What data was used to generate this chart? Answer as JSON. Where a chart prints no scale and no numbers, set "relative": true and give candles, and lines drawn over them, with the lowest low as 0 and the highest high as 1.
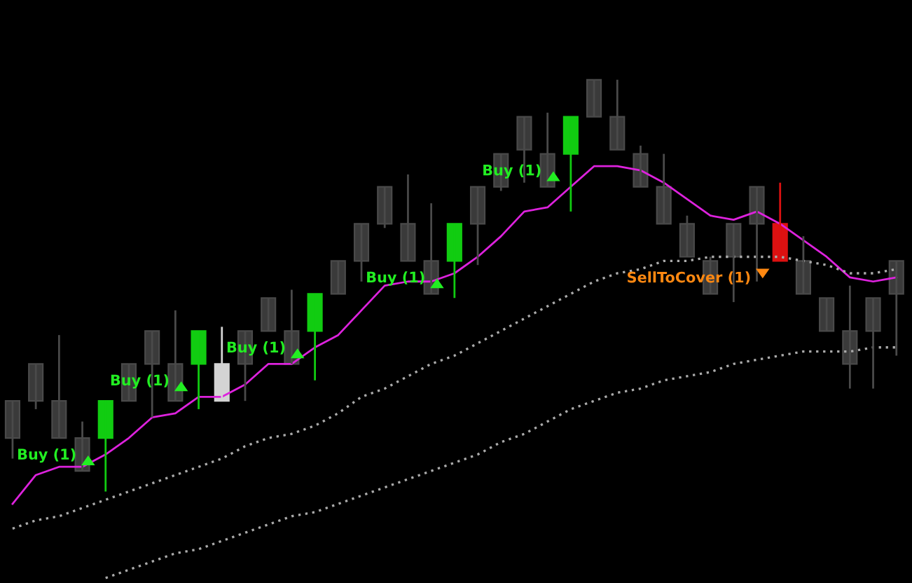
{
  "chart_data": {
    "type": "candlestick",
    "relative": true,
    "categories": [
      null,
      null,
      null,
      null,
      null,
      null,
      null,
      null,
      null,
      null,
      null,
      null,
      null,
      null,
      null,
      null,
      null,
      null,
      null,
      null,
      null,
      null,
      null,
      null,
      null,
      null,
      null,
      null,
      null,
      null,
      null,
      null,
      null,
      null,
      null,
      null,
      null,
      null,
      null
    ],
    "ohlc": [
      [
        0.22,
        0.22,
        0.08,
        0.13
      ],
      [
        0.31,
        0.31,
        0.2,
        0.22
      ],
      [
        0.22,
        0.38,
        0.13,
        0.13
      ],
      [
        0.13,
        0.17,
        0.05,
        0.05
      ],
      [
        0.13,
        0.22,
        0.0,
        0.22
      ],
      [
        0.31,
        0.31,
        0.22,
        0.22
      ],
      [
        0.39,
        0.39,
        0.18,
        0.31
      ],
      [
        0.31,
        0.44,
        0.22,
        0.22
      ],
      [
        0.31,
        0.39,
        0.2,
        0.39
      ],
      [
        0.31,
        0.4,
        0.22,
        0.22
      ],
      [
        0.39,
        0.39,
        0.22,
        0.31
      ],
      [
        0.47,
        0.47,
        0.39,
        0.39
      ],
      [
        0.39,
        0.49,
        0.31,
        0.31
      ],
      [
        0.39,
        0.48,
        0.27,
        0.48
      ],
      [
        0.56,
        0.56,
        0.48,
        0.48
      ],
      [
        0.65,
        0.65,
        0.51,
        0.56
      ],
      [
        0.74,
        0.74,
        0.64,
        0.65
      ],
      [
        0.65,
        0.77,
        0.56,
        0.56
      ],
      [
        0.56,
        0.7,
        0.48,
        0.48
      ],
      [
        0.56,
        0.65,
        0.47,
        0.65
      ],
      [
        0.74,
        0.74,
        0.55,
        0.65
      ],
      [
        0.82,
        0.82,
        0.73,
        0.74
      ],
      [
        0.91,
        0.91,
        0.75,
        0.83
      ],
      [
        0.82,
        0.92,
        0.74,
        0.74
      ],
      [
        0.82,
        0.91,
        0.68,
        0.91
      ],
      [
        1.0,
        1.0,
        0.91,
        0.91
      ],
      [
        0.91,
        1.0,
        0.83,
        0.83
      ],
      [
        0.82,
        0.84,
        0.74,
        0.74
      ],
      [
        0.74,
        0.82,
        0.65,
        0.65
      ],
      [
        0.65,
        0.67,
        0.57,
        0.57
      ],
      [
        0.56,
        0.57,
        0.48,
        0.48
      ],
      [
        0.65,
        0.65,
        0.46,
        0.57
      ],
      [
        0.74,
        0.74,
        0.51,
        0.65
      ],
      [
        0.65,
        0.75,
        0.56,
        0.56
      ],
      [
        0.56,
        0.62,
        0.48,
        0.48
      ],
      [
        0.47,
        0.47,
        0.39,
        0.39
      ],
      [
        0.39,
        0.5,
        0.25,
        0.31
      ],
      [
        0.47,
        0.47,
        0.25,
        0.39
      ],
      [
        0.56,
        0.56,
        0.33,
        0.48
      ]
    ],
    "colors": [
      "#3a3a3a",
      "#3a3a3a",
      "#3a3a3a",
      "#3a3a3a",
      "#11cc11",
      "#3a3a3a",
      "#3a3a3a",
      "#3a3a3a",
      "#11cc11",
      "#d4d4d4",
      "#3a3a3a",
      "#3a3a3a",
      "#3a3a3a",
      "#11cc11",
      "#3a3a3a",
      "#3a3a3a",
      "#3a3a3a",
      "#3a3a3a",
      "#3a3a3a",
      "#11cc11",
      "#3a3a3a",
      "#3a3a3a",
      "#3a3a3a",
      "#3a3a3a",
      "#11cc11",
      "#3a3a3a",
      "#3a3a3a",
      "#3a3a3a",
      "#3a3a3a",
      "#3a3a3a",
      "#3a3a3a",
      "#3a3a3a",
      "#3a3a3a",
      "#dd1111",
      "#3a3a3a",
      "#3a3a3a",
      "#3a3a3a",
      "#3a3a3a",
      "#3a3a3a"
    ],
    "series": [
      {
        "type": "line",
        "color": "#dd22dd",
        "line_style": "solid",
        "values": [
          -0.03,
          0.04,
          0.06,
          0.06,
          0.09,
          0.13,
          0.18,
          0.19,
          0.23,
          0.23,
          0.26,
          0.31,
          0.31,
          0.35,
          0.38,
          0.44,
          0.5,
          0.51,
          0.51,
          0.53,
          0.57,
          0.62,
          0.68,
          0.69,
          0.74,
          0.79,
          0.79,
          0.78,
          0.75,
          0.71,
          0.67,
          0.66,
          0.68,
          0.65,
          0.61,
          0.57,
          0.52,
          0.51,
          0.52
        ]
      },
      {
        "type": "line",
        "color": "#aaaaaa",
        "line_style": "dotted",
        "values": [
          -0.09,
          -0.07,
          -0.06,
          -0.04,
          -0.02,
          0.0,
          0.02,
          0.04,
          0.06,
          0.08,
          0.11,
          0.13,
          0.14,
          0.16,
          0.19,
          0.23,
          0.25,
          0.28,
          0.31,
          0.33,
          0.36,
          0.39,
          0.42,
          0.45,
          0.48,
          0.51,
          0.53,
          0.54,
          0.56,
          0.56,
          0.57,
          0.57,
          0.57,
          0.57,
          0.56,
          0.55,
          0.53,
          0.53,
          0.54
        ]
      },
      {
        "type": "line",
        "color": "#aaaaaa",
        "line_style": "dotted",
        "values": [
          null,
          null,
          null,
          null,
          -0.21,
          -0.19,
          -0.17,
          -0.15,
          -0.14,
          -0.12,
          -0.1,
          -0.08,
          -0.06,
          -0.05,
          -0.03,
          -0.01,
          0.01,
          0.03,
          0.05,
          0.07,
          0.09,
          0.12,
          0.14,
          0.17,
          0.2,
          0.22,
          0.24,
          0.25,
          0.27,
          0.28,
          0.29,
          0.31,
          0.32,
          0.33,
          0.34,
          0.34,
          0.34,
          0.35,
          0.35
        ]
      }
    ],
    "annotations": [
      "Buy (1)",
      "Buy (1)",
      "Buy (1)",
      "Buy (1)",
      "Buy (1)",
      "SellToCover (1)"
    ]
  }
}
